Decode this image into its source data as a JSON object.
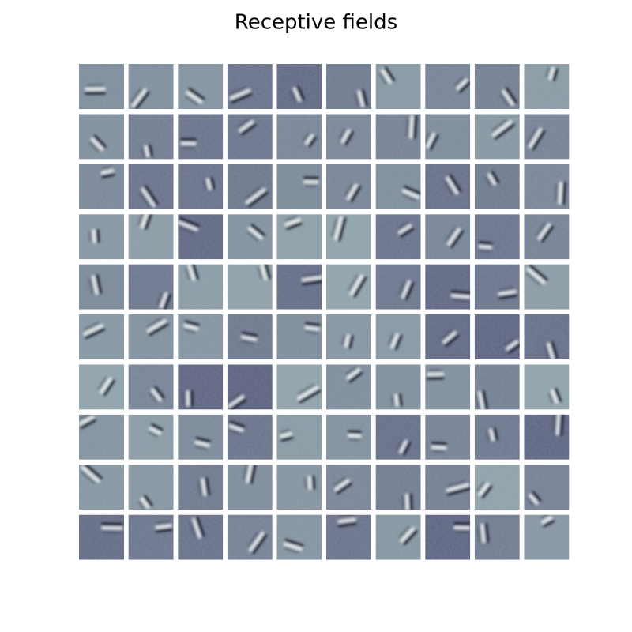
{
  "title": "Receptive fields"
}
